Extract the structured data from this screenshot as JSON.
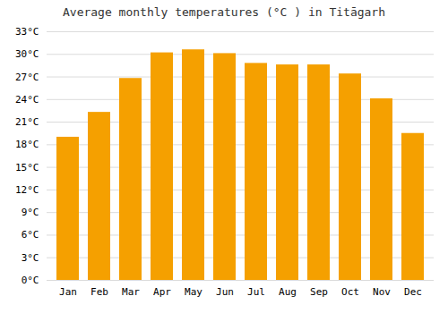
{
  "chart_data": {
    "type": "bar",
    "title": "Average monthly temperatures (°C ) in Titāgarh",
    "categories": [
      "Jan",
      "Feb",
      "Mar",
      "Apr",
      "May",
      "Jun",
      "Jul",
      "Aug",
      "Sep",
      "Oct",
      "Nov",
      "Dec"
    ],
    "values": [
      19.0,
      22.3,
      26.8,
      30.2,
      30.6,
      30.1,
      28.8,
      28.6,
      28.6,
      27.4,
      24.1,
      19.5
    ],
    "color": "#F5A000",
    "ylim": [
      0,
      33
    ],
    "yticks": [
      {
        "value": 0,
        "label": "0°C"
      },
      {
        "value": 3,
        "label": "3°C"
      },
      {
        "value": 6,
        "label": "6°C"
      },
      {
        "value": 9,
        "label": "9°C"
      },
      {
        "value": 12,
        "label": "12°C"
      },
      {
        "value": 15,
        "label": "15°C"
      },
      {
        "value": 18,
        "label": "18°C"
      },
      {
        "value": 21,
        "label": "21°C"
      },
      {
        "value": 24,
        "label": "24°C"
      },
      {
        "value": 27,
        "label": "27°C"
      },
      {
        "value": 30,
        "label": "30°C"
      },
      {
        "value": 33,
        "label": "33°C"
      }
    ],
    "grid": true
  }
}
